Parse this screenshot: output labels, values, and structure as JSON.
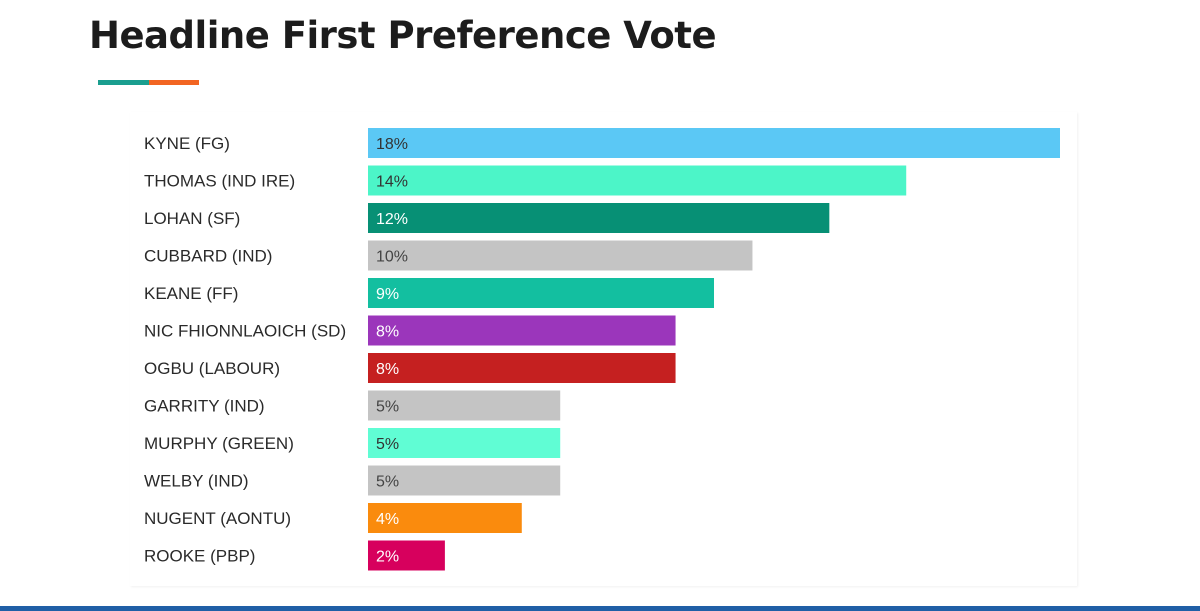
{
  "title": "Headline First Preference Vote",
  "colors": {
    "accent_teal": "#1a9e8f",
    "accent_orange": "#f26522",
    "bottom_bar": "#1f5fa6"
  },
  "chart_data": {
    "type": "bar",
    "orientation": "horizontal",
    "title": "",
    "xlabel": "",
    "ylabel": "",
    "xlim": [
      0,
      18
    ],
    "grid": false,
    "legend": "none",
    "value_suffix": "%",
    "categories": [
      "KYNE (FG)",
      "THOMAS (IND IRE)",
      "LOHAN (SF)",
      "CUBBARD (IND)",
      "KEANE (FF)",
      "NIC FHIONNLAOICH (SD)",
      "OGBU (LABOUR)",
      "GARRITY (IND)",
      "MURPHY (GREEN)",
      "WELBY (IND)",
      "NUGENT (AONTU)",
      "ROOKE (PBP)"
    ],
    "values": [
      18,
      14,
      12,
      10,
      9,
      8,
      8,
      5,
      5,
      5,
      4,
      2
    ],
    "bar_colors": [
      "#5bc8f5",
      "#4cf5c8",
      "#079075",
      "#c4c4c4",
      "#13bfa0",
      "#9b36bb",
      "#c52020",
      "#c4c4c4",
      "#60fdd4",
      "#c4c4c4",
      "#fa8b0d",
      "#d7005d"
    ],
    "label_colors": [
      "#333333",
      "#333333",
      "#ffffff",
      "#444444",
      "#ffffff",
      "#ffffff",
      "#ffffff",
      "#444444",
      "#333333",
      "#444444",
      "#ffffff",
      "#ffffff"
    ]
  }
}
